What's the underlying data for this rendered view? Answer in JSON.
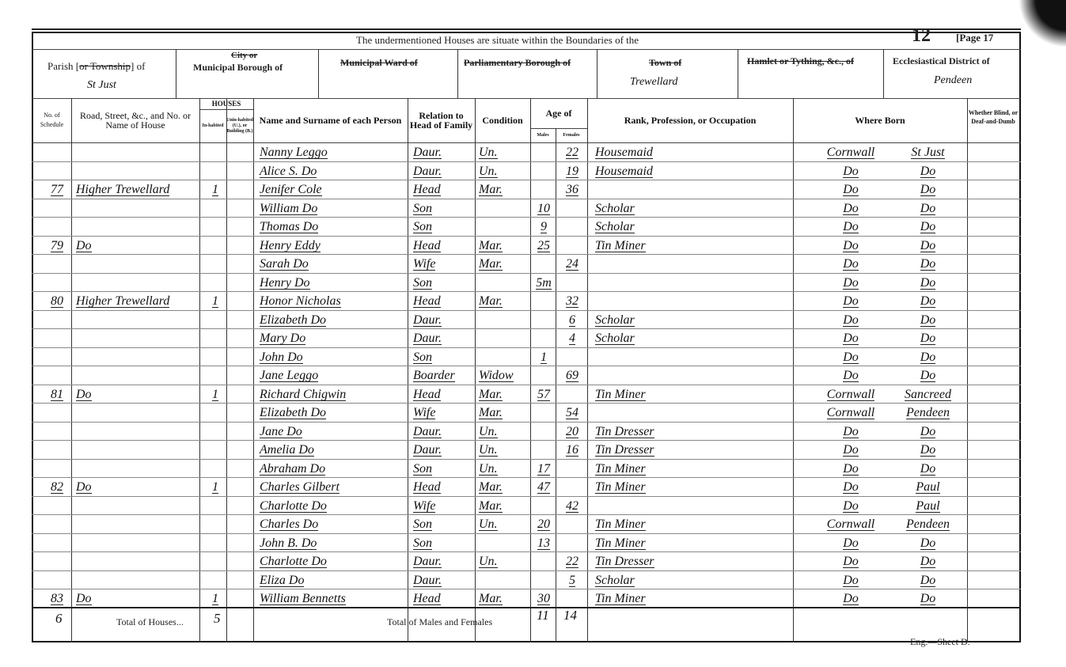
{
  "header": {
    "banner": "The undermentioned Houses are situate within the Boundaries of the",
    "sheet_number": "12",
    "page": "[Page 17",
    "parish_label": "Parish [or Township] of",
    "parish_label_struck": "or Township",
    "parish_value": "St Just",
    "city_label_struck": "City or",
    "borough_label": "Municipal Borough of",
    "ward_label": "Municipal Ward of",
    "parl_label": "Parliamentary Borough of",
    "town_label": "Town of",
    "town_value": "Trewellard",
    "hamlet_label": "Hamlet or Tything, &c., of",
    "eccl_label": "Ecclesiastical District of",
    "eccl_value": "Pendeen"
  },
  "columns": {
    "schedule": "No. of Schedule",
    "road": "Road, Street, &c., and No. or Name of House",
    "houses": "HOUSES",
    "inhabited": "In-habited",
    "uninhabited": "Unin-habited (U.), or Building (B.)",
    "name": "Name and Surname of each Person",
    "relation": "Relation to Head of Family",
    "condition": "Condition",
    "age": "Age of",
    "males": "Males",
    "females": "Females",
    "occupation": "Rank, Profession, or Occupation",
    "born": "Where Born",
    "blind": "Whether Blind, or Deaf-and-Dumb"
  },
  "rows": [
    {
      "sched": "",
      "road": "",
      "inh": "",
      "name": "Nanny Leggo",
      "rel": "Daur.",
      "cond": "Un.",
      "m": "",
      "f": "22",
      "occ": "Housemaid",
      "born1": "Cornwall",
      "born2": "St Just"
    },
    {
      "sched": "",
      "road": "",
      "inh": "",
      "name": "Alice S. Do",
      "rel": "Daur.",
      "cond": "Un.",
      "m": "",
      "f": "19",
      "occ": "Housemaid",
      "born1": "Do",
      "born2": "Do"
    },
    {
      "sched": "77",
      "road": "Higher Trewellard",
      "inh": "1",
      "name": "Jenifer Cole",
      "rel": "Head",
      "cond": "Mar.",
      "m": "",
      "f": "36",
      "occ": "",
      "born1": "Do",
      "born2": "Do"
    },
    {
      "sched": "",
      "road": "",
      "inh": "",
      "name": "William Do",
      "rel": "Son",
      "cond": "",
      "m": "10",
      "f": "",
      "occ": "Scholar",
      "born1": "Do",
      "born2": "Do"
    },
    {
      "sched": "",
      "road": "",
      "inh": "",
      "name": "Thomas Do",
      "rel": "Son",
      "cond": "",
      "m": "9",
      "f": "",
      "occ": "Scholar",
      "born1": "Do",
      "born2": "Do"
    },
    {
      "sched": "79",
      "road": "Do",
      "inh": "",
      "name": "Henry Eddy",
      "rel": "Head",
      "cond": "Mar.",
      "m": "25",
      "f": "",
      "occ": "Tin Miner",
      "born1": "Do",
      "born2": "Do"
    },
    {
      "sched": "",
      "road": "",
      "inh": "",
      "name": "Sarah Do",
      "rel": "Wife",
      "cond": "Mar.",
      "m": "",
      "f": "24",
      "occ": "",
      "born1": "Do",
      "born2": "Do"
    },
    {
      "sched": "",
      "road": "",
      "inh": "",
      "name": "Henry Do",
      "rel": "Son",
      "cond": "",
      "m": "5m",
      "f": "",
      "occ": "",
      "born1": "Do",
      "born2": "Do"
    },
    {
      "sched": "80",
      "road": "Higher Trewellard",
      "inh": "1",
      "name": "Honor Nicholas",
      "rel": "Head",
      "cond": "Mar.",
      "m": "",
      "f": "32",
      "occ": "",
      "born1": "Do",
      "born2": "Do"
    },
    {
      "sched": "",
      "road": "",
      "inh": "",
      "name": "Elizabeth Do",
      "rel": "Daur.",
      "cond": "",
      "m": "",
      "f": "6",
      "occ": "Scholar",
      "born1": "Do",
      "born2": "Do"
    },
    {
      "sched": "",
      "road": "",
      "inh": "",
      "name": "Mary Do",
      "rel": "Daur.",
      "cond": "",
      "m": "",
      "f": "4",
      "occ": "Scholar",
      "born1": "Do",
      "born2": "Do"
    },
    {
      "sched": "",
      "road": "",
      "inh": "",
      "name": "John Do",
      "rel": "Son",
      "cond": "",
      "m": "1",
      "f": "",
      "occ": "",
      "born1": "Do",
      "born2": "Do"
    },
    {
      "sched": "",
      "road": "",
      "inh": "",
      "name": "Jane Leggo",
      "rel": "Boarder",
      "cond": "Widow",
      "m": "",
      "f": "69",
      "occ": "",
      "born1": "Do",
      "born2": "Do"
    },
    {
      "sched": "81",
      "road": "Do",
      "inh": "1",
      "name": "Richard Chigwin",
      "rel": "Head",
      "cond": "Mar.",
      "m": "57",
      "f": "",
      "occ": "Tin Miner",
      "born1": "Cornwall",
      "born2": "Sancreed"
    },
    {
      "sched": "",
      "road": "",
      "inh": "",
      "name": "Elizabeth Do",
      "rel": "Wife",
      "cond": "Mar.",
      "m": "",
      "f": "54",
      "occ": "",
      "born1": "Cornwall",
      "born2": "Pendeen"
    },
    {
      "sched": "",
      "road": "",
      "inh": "",
      "name": "Jane Do",
      "rel": "Daur.",
      "cond": "Un.",
      "m": "",
      "f": "20",
      "occ": "Tin Dresser",
      "born1": "Do",
      "born2": "Do"
    },
    {
      "sched": "",
      "road": "",
      "inh": "",
      "name": "Amelia Do",
      "rel": "Daur.",
      "cond": "Un.",
      "m": "",
      "f": "16",
      "occ": "Tin Dresser",
      "born1": "Do",
      "born2": "Do"
    },
    {
      "sched": "",
      "road": "",
      "inh": "",
      "name": "Abraham Do",
      "rel": "Son",
      "cond": "Un.",
      "m": "17",
      "f": "",
      "occ": "Tin Miner",
      "born1": "Do",
      "born2": "Do"
    },
    {
      "sched": "82",
      "road": "Do",
      "inh": "1",
      "name": "Charles Gilbert",
      "rel": "Head",
      "cond": "Mar.",
      "m": "47",
      "f": "",
      "occ": "Tin Miner",
      "born1": "Do",
      "born2": "Paul"
    },
    {
      "sched": "",
      "road": "",
      "inh": "",
      "name": "Charlotte Do",
      "rel": "Wife",
      "cond": "Mar.",
      "m": "",
      "f": "42",
      "occ": "",
      "born1": "Do",
      "born2": "Paul"
    },
    {
      "sched": "",
      "road": "",
      "inh": "",
      "name": "Charles Do",
      "rel": "Son",
      "cond": "Un.",
      "m": "20",
      "f": "",
      "occ": "Tin Miner",
      "born1": "Cornwall",
      "born2": "Pendeen"
    },
    {
      "sched": "",
      "road": "",
      "inh": "",
      "name": "John B. Do",
      "rel": "Son",
      "cond": "",
      "m": "13",
      "f": "",
      "occ": "Tin Miner",
      "born1": "Do",
      "born2": "Do"
    },
    {
      "sched": "",
      "road": "",
      "inh": "",
      "name": "Charlotte Do",
      "rel": "Daur.",
      "cond": "Un.",
      "m": "",
      "f": "22",
      "occ": "Tin Dresser",
      "born1": "Do",
      "born2": "Do"
    },
    {
      "sched": "",
      "road": "",
      "inh": "",
      "name": "Eliza Do",
      "rel": "Daur.",
      "cond": "",
      "m": "",
      "f": "5",
      "occ": "Scholar",
      "born1": "Do",
      "born2": "Do"
    },
    {
      "sched": "83",
      "road": "Do",
      "inh": "1",
      "name": "William Bennetts",
      "rel": "Head",
      "cond": "Mar.",
      "m": "30",
      "f": "",
      "occ": "Tin Miner",
      "born1": "Do",
      "born2": "Do"
    }
  ],
  "totals": {
    "schedules": "6",
    "houses_label": "Total of Houses...",
    "houses": "5",
    "persons_label": "Total of Males and Females",
    "males": "11",
    "females": "14"
  },
  "footer": "Eng.—Sheet D."
}
